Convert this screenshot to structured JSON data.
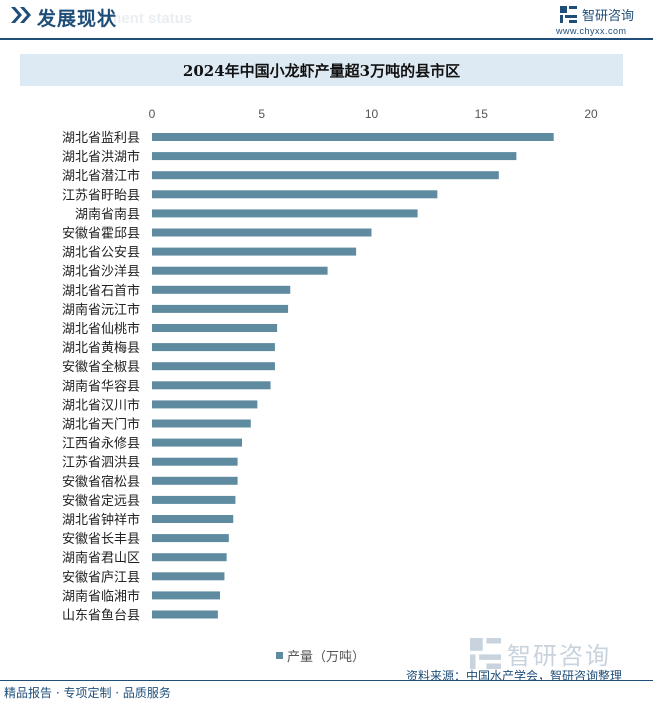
{
  "header": {
    "section_title": "发展现状",
    "section_subtitle": "ment status",
    "brand_name": "智研咨询",
    "brand_url": "www.chyxx.com"
  },
  "colors": {
    "bar": "#5f8ba0",
    "brand": "#1f4e79",
    "title_band": "#dde9f3"
  },
  "chart_data": {
    "type": "bar",
    "orientation": "horizontal",
    "title": "2024年中国小龙虾产量超3万吨的县市区",
    "xlim": [
      0,
      20
    ],
    "x_ticks": [
      0,
      5,
      10,
      15,
      20
    ],
    "x_axis_position": "top",
    "grid": false,
    "legend_position": "bottom",
    "categories": [
      "湖北省监利县",
      "湖北省洪湖市",
      "湖北省潜江市",
      "江苏省盱眙县",
      "湖南省南县",
      "安徽省霍邱县",
      "湖北省公安县",
      "湖北省沙洋县",
      "湖北省石首市",
      "湖南省沅江市",
      "湖北省仙桃市",
      "湖北省黄梅县",
      "安徽省全椒县",
      "湖南省华容县",
      "湖北省汉川市",
      "湖北省天门市",
      "江西省永修县",
      "江苏省泗洪县",
      "安徽省宿松县",
      "安徽省定远县",
      "湖北省钟祥市",
      "安徽省长丰县",
      "湖南省君山区",
      "安徽省庐江县",
      "湖南省临湘市",
      "山东省鱼台县"
    ],
    "series": [
      {
        "name": "产量（万吨）",
        "values": [
          18.3,
          16.6,
          15.8,
          13.0,
          12.1,
          10.0,
          9.3,
          8.0,
          6.3,
          6.2,
          5.7,
          5.6,
          5.6,
          5.4,
          4.8,
          4.5,
          4.1,
          3.9,
          3.9,
          3.8,
          3.7,
          3.5,
          3.4,
          3.3,
          3.1,
          3.0
        ]
      }
    ]
  },
  "legend": {
    "label": "产量（万吨）"
  },
  "source": "资料来源：中国水产学会，智研咨询整理",
  "footer": {
    "text": "精品报告 · 专项定制 · 品质服务"
  },
  "watermark": {
    "text": "智研咨询"
  }
}
